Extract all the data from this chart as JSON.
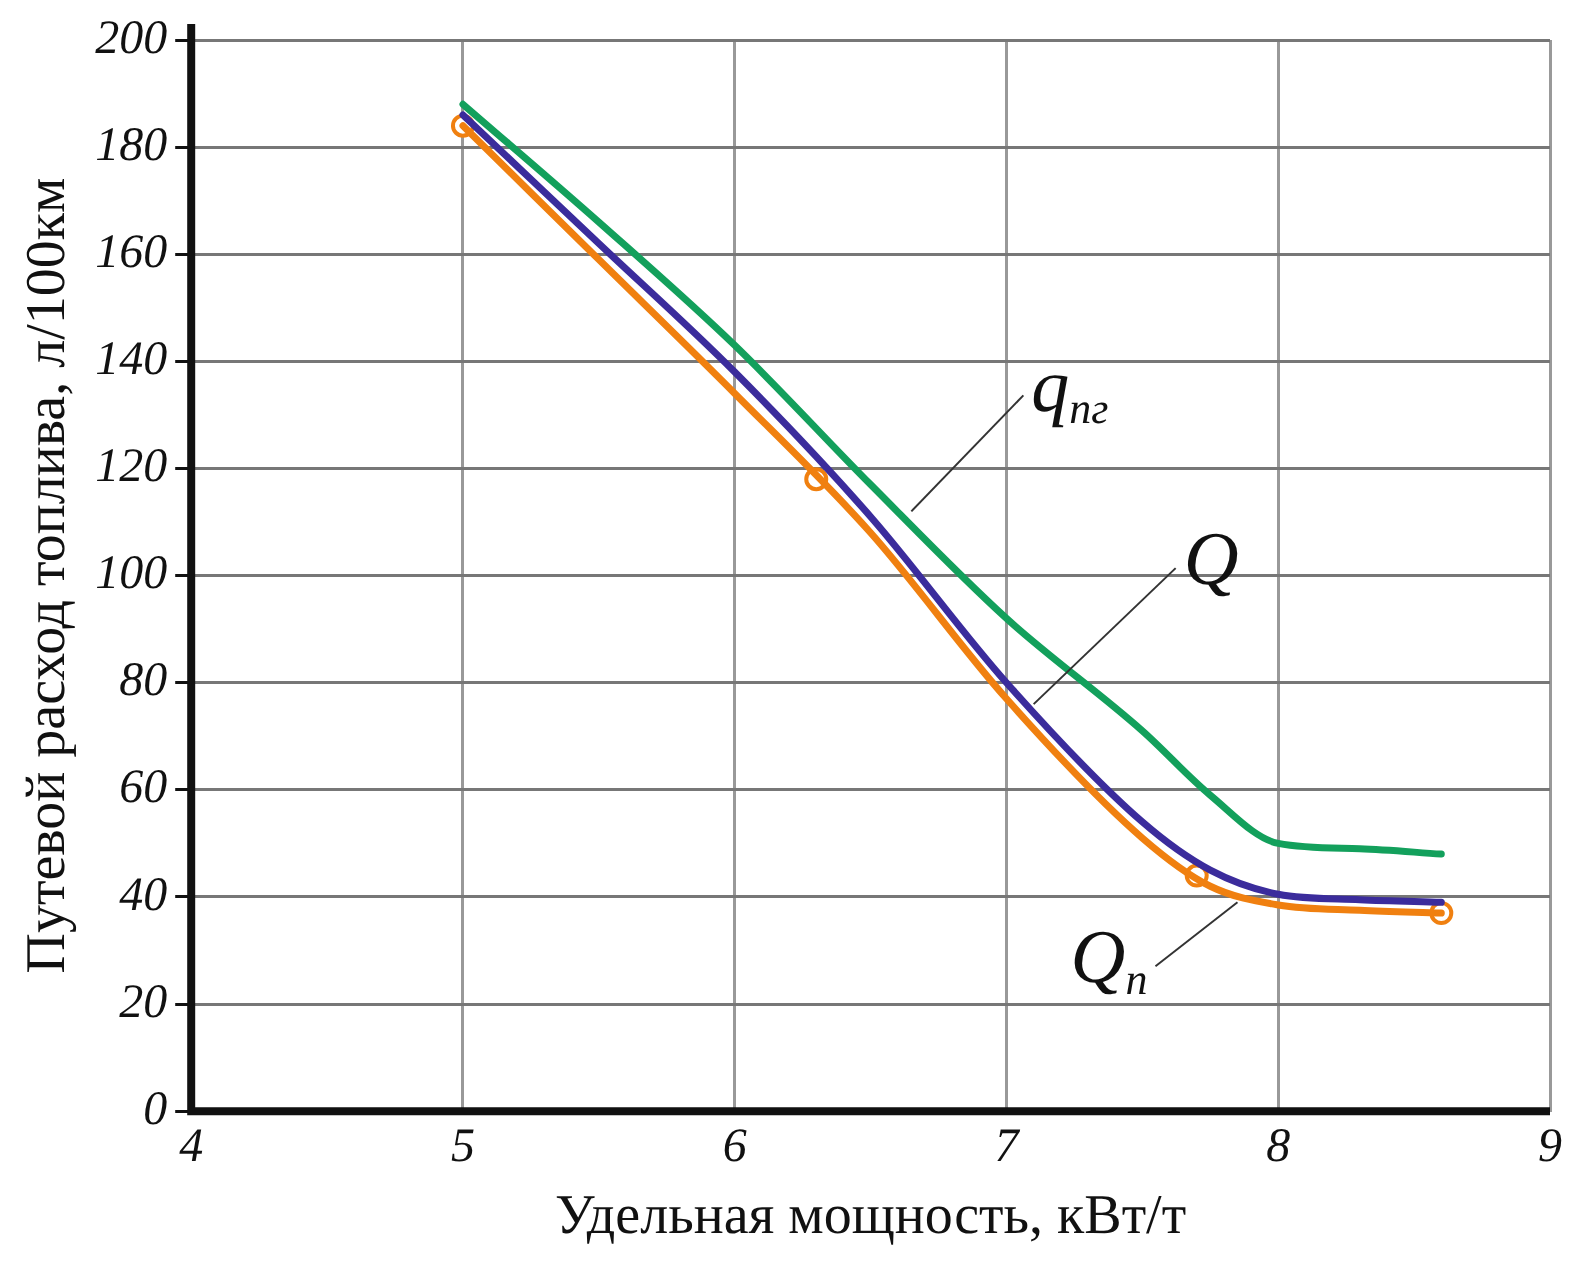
{
  "chart_data": {
    "type": "line",
    "xlabel": "Удельная мощность, кВт/т",
    "ylabel": "Путевой расход топлива, л/100км",
    "xlim": [
      4,
      9
    ],
    "xticks": [
      4,
      5,
      6,
      7,
      8,
      9
    ],
    "ylim": [
      0,
      200
    ],
    "yticks": [
      0,
      20,
      40,
      60,
      80,
      100,
      120,
      140,
      160,
      180,
      200
    ],
    "grid": true,
    "legend": false,
    "marker": "none",
    "line_style": "solid",
    "series": [
      {
        "color": "#13a05c",
        "x": [
          5,
          5.5,
          6,
          6.5,
          7,
          7.5,
          7.75,
          8,
          8.3,
          8.6
        ],
        "values": [
          188,
          166,
          143,
          117,
          92,
          71,
          59,
          50,
          49,
          48
        ]
      },
      {
        "color": "#3b2c9c",
        "x": [
          5,
          5.5,
          6,
          6.5,
          7,
          7.5,
          7.75,
          8,
          8.3,
          8.6
        ],
        "values": [
          186,
          162,
          138,
          111,
          80,
          54,
          45,
          40.5,
          39.5,
          39
        ]
      },
      {
        "color": "#f08010",
        "x": [
          5,
          5.5,
          6,
          6.5,
          7,
          7.5,
          7.75,
          8,
          8.3,
          8.6
        ],
        "values": [
          184,
          159,
          134,
          108,
          77,
          51,
          42,
          38.5,
          37.5,
          37
        ]
      },
      {
        "type": "scatter",
        "color": "#f08010",
        "marker": "circle",
        "x": [
          5,
          6.3,
          7.7,
          8.6
        ],
        "values": [
          184,
          118,
          44,
          37
        ]
      }
    ],
    "annotations": [
      {
        "text": "q$_{пг}$",
        "x": 6.65,
        "y": 112
      },
      {
        "text": "Q",
        "x": 7.1,
        "y": 76
      },
      {
        "text": "Q$_{п}$",
        "x": 7.85,
        "y": 39
      }
    ]
  }
}
